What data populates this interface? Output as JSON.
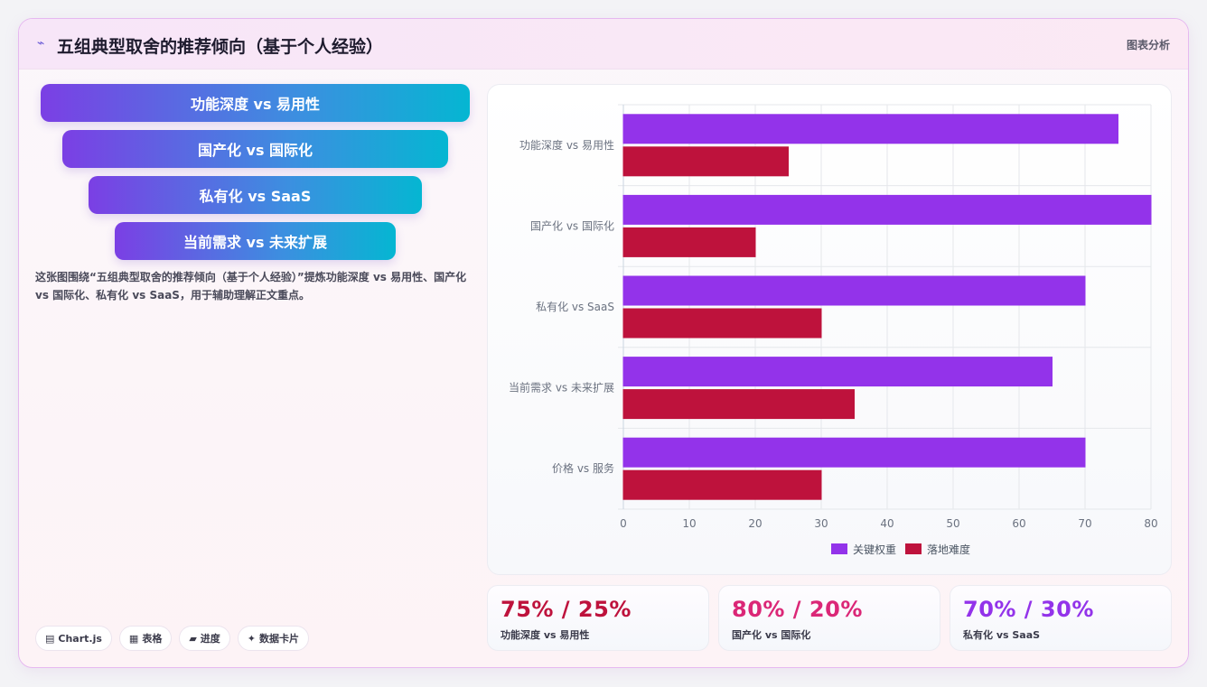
{
  "header": {
    "title": "五组典型取舍的推荐倾向（基于个人经验）",
    "tag": "图表分析",
    "icon": "sparkle-line-icon"
  },
  "pills": [
    "功能深度 vs 易用性",
    "国产化 vs 国际化",
    "私有化 vs SaaS",
    "当前需求 vs 未来扩展"
  ],
  "description": "这张图围绕“五组典型取舍的推荐倾向（基于个人经验）”提炼功能深度 vs 易用性、国产化 vs 国际化、私有化 vs SaaS，用于辅助理解正文重点。",
  "chips": [
    {
      "icon": "chart-icon",
      "glyph": "▤",
      "label": "Chart.js"
    },
    {
      "icon": "table-icon",
      "glyph": "▦",
      "label": "表格"
    },
    {
      "icon": "progress-icon",
      "glyph": "▰",
      "label": "进度"
    },
    {
      "icon": "datacard-icon",
      "glyph": "✦",
      "label": "数据卡片"
    }
  ],
  "chart_data": {
    "type": "bar",
    "orientation": "horizontal",
    "categories": [
      "功能深度 vs 易用性",
      "国产化 vs 国际化",
      "私有化 vs SaaS",
      "当前需求 vs 未来扩展",
      "价格 vs 服务"
    ],
    "series": [
      {
        "name": "关键权重",
        "color": "#9333ea",
        "values": [
          75,
          80,
          70,
          65,
          70
        ]
      },
      {
        "name": "落地难度",
        "color": "#be123c",
        "values": [
          25,
          20,
          30,
          35,
          30
        ]
      }
    ],
    "xlim": [
      0,
      80
    ],
    "xticks": [
      0,
      10,
      20,
      30,
      40,
      50,
      60,
      70,
      80
    ],
    "grid": true,
    "legend_position": "bottom"
  },
  "stats": [
    {
      "value": "75% / 25%",
      "label": "功能深度 vs 易用性",
      "color": "#be123c"
    },
    {
      "value": "80% / 20%",
      "label": "国产化 vs 国际化",
      "color": "#db2777"
    },
    {
      "value": "70% / 30%",
      "label": "私有化 vs SaaS",
      "color": "#9333ea"
    }
  ]
}
